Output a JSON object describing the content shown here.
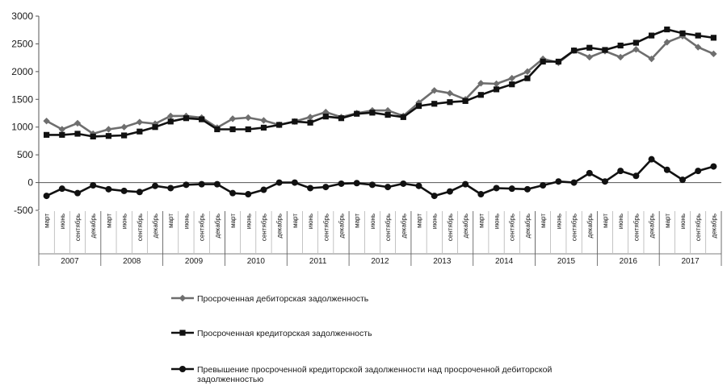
{
  "chart_data": {
    "type": "line",
    "y_range": [
      -500,
      3000
    ],
    "y_ticks": [
      "3000",
      "2500",
      "2000",
      "1500",
      "1000",
      "500",
      "0",
      "-500"
    ],
    "month_labels": [
      "март",
      "июнь",
      "сентябрь",
      "декабрь"
    ],
    "years": [
      "2007",
      "2008",
      "2009",
      "2010",
      "2011",
      "2012",
      "2013",
      "2014",
      "2015",
      "2016",
      "2017"
    ],
    "grid": false,
    "legend_position": "bottom",
    "series": [
      {
        "name": "Просроченная дебиторская  задолженность",
        "color": "#6e6e6e",
        "marker": "diamond",
        "values": [
          1110,
          960,
          1070,
          880,
          960,
          1000,
          1090,
          1060,
          1200,
          1200,
          1170,
          990,
          1150,
          1170,
          1120,
          1040,
          1100,
          1180,
          1270,
          1180,
          1250,
          1300,
          1300,
          1200,
          1440,
          1660,
          1610,
          1500,
          1790,
          1780,
          1880,
          2000,
          2230,
          2160,
          2380,
          2260,
          2370,
          2260,
          2400,
          2230,
          2530,
          2640,
          2440,
          2320
        ]
      },
      {
        "name": "Просроченная кредиторская  задолженность",
        "color": "#111111",
        "marker": "square",
        "values": [
          860,
          860,
          880,
          830,
          840,
          850,
          920,
          1000,
          1100,
          1160,
          1140,
          960,
          960,
          960,
          990,
          1040,
          1100,
          1080,
          1190,
          1160,
          1240,
          1260,
          1220,
          1180,
          1380,
          1420,
          1450,
          1470,
          1580,
          1680,
          1770,
          1880,
          2180,
          2180,
          2380,
          2430,
          2390,
          2470,
          2520,
          2650,
          2760,
          2690,
          2650,
          2610
        ]
      },
      {
        "name": "Превышение просроченной кредиторской задолженности над просроченной дебиторской задолженностью",
        "color": "#111111",
        "marker": "circle",
        "values": [
          -240,
          -110,
          -190,
          -50,
          -120,
          -150,
          -170,
          -60,
          -100,
          -40,
          -30,
          -30,
          -190,
          -210,
          -130,
          0,
          0,
          -100,
          -80,
          -20,
          -10,
          -40,
          -80,
          -20,
          -60,
          -240,
          -160,
          -30,
          -210,
          -100,
          -110,
          -120,
          -50,
          20,
          0,
          170,
          20,
          210,
          120,
          420,
          230,
          50,
          210,
          290
        ]
      }
    ]
  }
}
